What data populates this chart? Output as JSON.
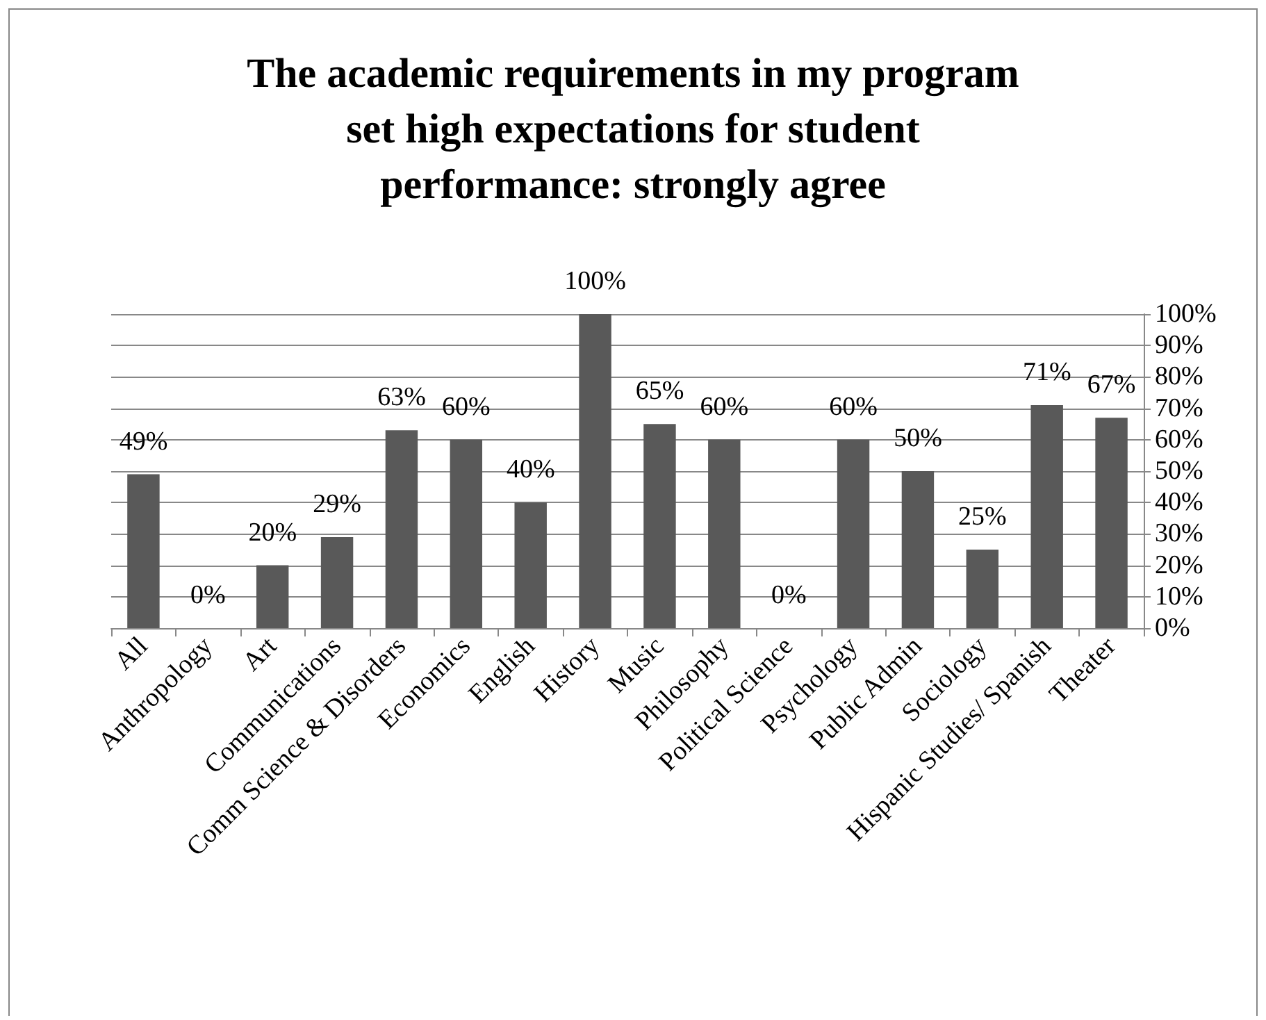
{
  "chart_data": {
    "type": "bar",
    "title": "The academic requirements in my program\nset high expectations for student\nperformance: strongly agree",
    "categories": [
      "All",
      "Anthropology",
      "Art",
      "Communications",
      "Comm Science & Disorders",
      "Economics",
      "English",
      "History",
      "Music",
      "Philosophy",
      "Political Science",
      "Psychology",
      "Public Admin",
      "Sociology",
      "Hispanic Studies/ Spanish",
      "Theater"
    ],
    "values": [
      49,
      0,
      20,
      29,
      63,
      60,
      40,
      100,
      65,
      60,
      0,
      60,
      50,
      25,
      71,
      67
    ],
    "value_labels": [
      "49%",
      "0%",
      "20%",
      "29%",
      "63%",
      "60%",
      "40%",
      "100%",
      "65%",
      "60%",
      "0%",
      "60%",
      "50%",
      "25%",
      "71%",
      "67%"
    ],
    "color": "#595959",
    "ylim": [
      0,
      100
    ],
    "yticks": [
      {
        "value": 0,
        "label": "0%"
      },
      {
        "value": 10,
        "label": "10%"
      },
      {
        "value": 20,
        "label": "20%"
      },
      {
        "value": 30,
        "label": "30%"
      },
      {
        "value": 40,
        "label": "40%"
      },
      {
        "value": 50,
        "label": "50%"
      },
      {
        "value": 60,
        "label": "60%"
      },
      {
        "value": 70,
        "label": "70%"
      },
      {
        "value": 80,
        "label": "80%"
      },
      {
        "value": 90,
        "label": "90%"
      },
      {
        "value": 100,
        "label": "100%"
      }
    ],
    "grid": "y"
  }
}
